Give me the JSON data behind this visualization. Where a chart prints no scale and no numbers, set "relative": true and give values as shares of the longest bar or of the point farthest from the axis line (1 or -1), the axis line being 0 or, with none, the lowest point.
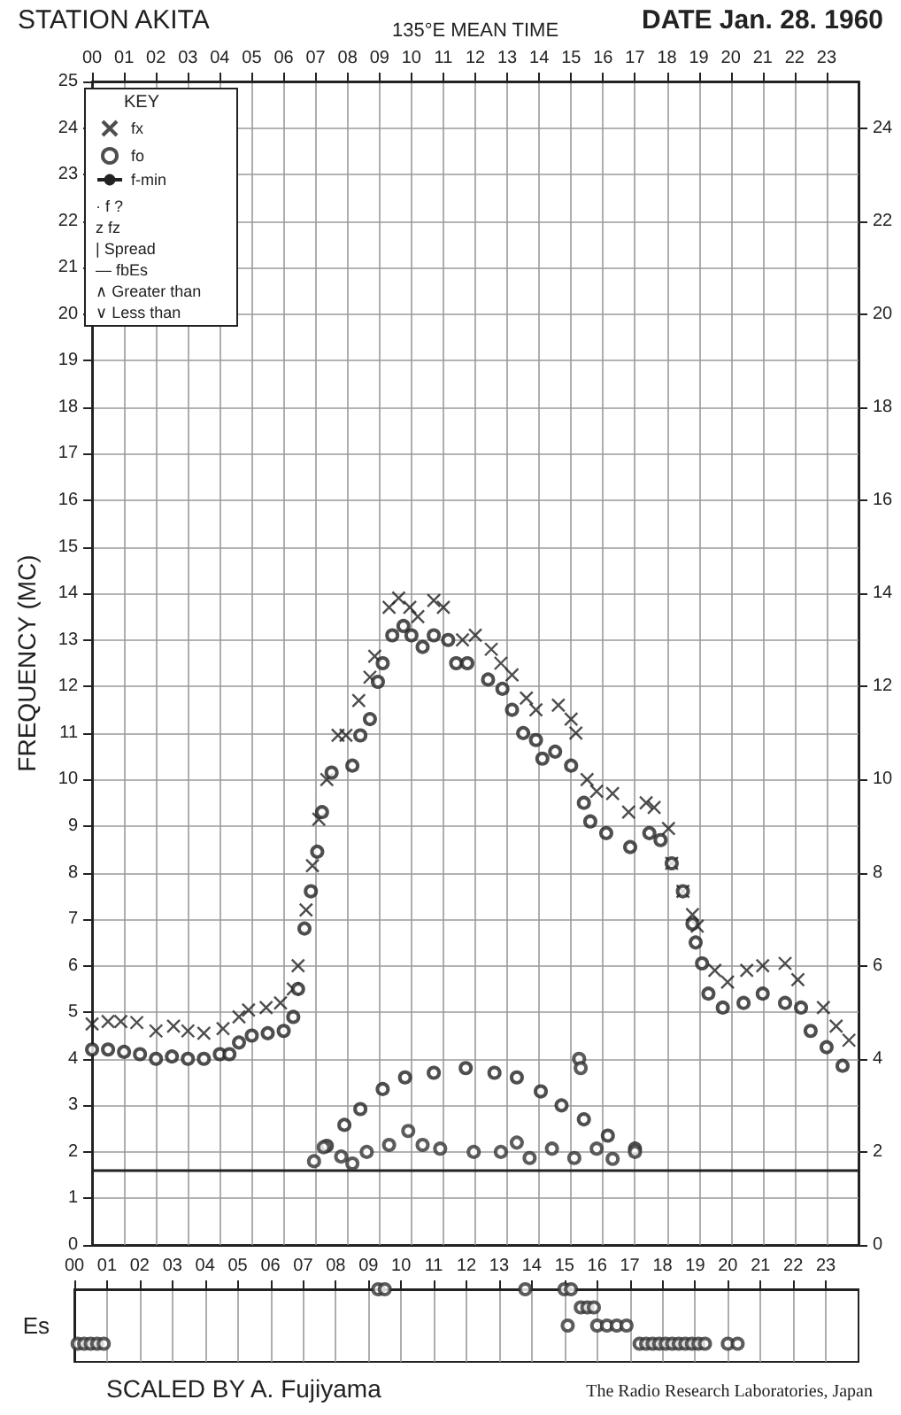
{
  "chart_data": [
    {
      "type": "scatter",
      "title": "STATION AKITA",
      "x2label": "135°E MEAN TIME",
      "ylabel": "FREQUENCY (MC)",
      "legend_title": "KEY",
      "annotations": [
        "DATE Jan. 28. 1960",
        "· f ?",
        "z fz",
        "| Spread",
        "— fbEs",
        "∧ Greater than",
        "∨ Less than"
      ],
      "xlim": [
        0,
        24
      ],
      "x2lim": [
        0,
        24
      ],
      "x2ticks": [
        {
          "value": 0,
          "label": "00"
        },
        {
          "value": 1,
          "label": "01"
        },
        {
          "value": 2,
          "label": "02"
        },
        {
          "value": 3,
          "label": "03"
        },
        {
          "value": 4,
          "label": "04"
        },
        {
          "value": 5,
          "label": "05"
        },
        {
          "value": 6,
          "label": "06"
        },
        {
          "value": 7,
          "label": "07"
        },
        {
          "value": 8,
          "label": "08"
        },
        {
          "value": 9,
          "label": "09"
        },
        {
          "value": 10,
          "label": "10"
        },
        {
          "value": 11,
          "label": "11"
        },
        {
          "value": 12,
          "label": "12"
        },
        {
          "value": 13,
          "label": "13"
        },
        {
          "value": 14,
          "label": "14"
        },
        {
          "value": 15,
          "label": "15"
        },
        {
          "value": 16,
          "label": "16"
        },
        {
          "value": 17,
          "label": "17"
        },
        {
          "value": 18,
          "label": "18"
        },
        {
          "value": 19,
          "label": "19"
        },
        {
          "value": 20,
          "label": "20"
        },
        {
          "value": 21,
          "label": "21"
        },
        {
          "value": 22,
          "label": "22"
        },
        {
          "value": 23,
          "label": "23"
        }
      ],
      "ylim": [
        0,
        25
      ],
      "yticks": [
        0,
        1,
        2,
        3,
        4,
        5,
        6,
        7,
        8,
        9,
        10,
        11,
        12,
        13,
        14,
        15,
        16,
        17,
        18,
        19,
        20,
        21,
        22,
        23,
        24,
        25
      ],
      "y2lim": [
        0,
        25
      ],
      "y2ticks": [
        0,
        2,
        4,
        6,
        8,
        10,
        12,
        14,
        16,
        18,
        20,
        22,
        24
      ],
      "grid": true,
      "legend": "top left",
      "tick_labels": "y",
      "series": [
        {
          "name": "fx",
          "color": "#222222",
          "marker": "cross",
          "x": [
            0,
            0.5,
            0.9,
            1.4,
            2.0,
            2.55,
            3.0,
            3.5,
            4.1,
            4.6,
            4.9,
            5.45,
            5.9,
            6.3,
            6.45,
            6.7,
            6.9,
            7.1,
            7.35,
            7.7,
            7.95,
            8.35,
            8.7,
            8.85,
            9.3,
            9.6,
            9.95,
            10.2,
            10.7,
            11.0,
            11.6,
            12.0,
            12.5,
            12.8,
            13.15,
            13.6,
            13.9,
            14.6,
            15.0,
            15.15,
            15.5,
            15.8,
            16.3,
            16.8,
            17.35,
            17.6,
            18.05,
            18.15,
            18.5,
            18.8,
            18.95,
            19.5,
            19.9,
            20.5,
            21.0,
            21.7,
            22.1,
            22.9,
            23.3,
            23.7
          ],
          "values": [
            4.75,
            4.8,
            4.8,
            4.78,
            4.6,
            4.7,
            4.6,
            4.55,
            4.65,
            4.9,
            5.05,
            5.1,
            5.2,
            5.5,
            6.0,
            7.2,
            8.15,
            9.15,
            10.0,
            10.95,
            10.95,
            11.7,
            12.2,
            12.65,
            13.7,
            13.9,
            13.7,
            13.5,
            13.85,
            13.7,
            13.0,
            13.1,
            12.8,
            12.5,
            12.25,
            11.75,
            11.5,
            11.6,
            11.3,
            11.0,
            10.0,
            9.75,
            9.7,
            9.3,
            9.5,
            9.4,
            8.95,
            8.2,
            7.6,
            7.1,
            6.85,
            5.9,
            5.65,
            5.9,
            6.0,
            6.05,
            5.7,
            5.1,
            4.7,
            4.4
          ]
        },
        {
          "name": "fo",
          "color": "#222222",
          "marker": "circle",
          "x": [
            0,
            0.5,
            1,
            1.5,
            2,
            2.5,
            3,
            3.5,
            4,
            4.3,
            4.6,
            5,
            5.5,
            6,
            6.3,
            6.45,
            6.65,
            6.85,
            7.05,
            7.2,
            7.5,
            8.15,
            8.4,
            8.7,
            8.95,
            9.1,
            9.4,
            9.75,
            10,
            10.35,
            10.7,
            11.15,
            11.4,
            11.75,
            12.4,
            12.85,
            13.15,
            13.5,
            13.9,
            14.1,
            14.5,
            15.0,
            15.4,
            15.6,
            16.1,
            16.85,
            17.45,
            17.8,
            18.15,
            18.5,
            18.8,
            18.9,
            19.1,
            19.3,
            19.75,
            20.4,
            21.0,
            21.7,
            22.2,
            22.5,
            23.0,
            23.5
          ],
          "values": [
            4.2,
            4.2,
            4.15,
            4.1,
            4.0,
            4.05,
            4.0,
            4.0,
            4.1,
            4.1,
            4.35,
            4.5,
            4.55,
            4.6,
            4.9,
            5.5,
            6.8,
            7.6,
            8.45,
            9.3,
            10.15,
            10.3,
            10.95,
            11.3,
            12.1,
            12.5,
            13.1,
            13.3,
            13.1,
            12.85,
            13.1,
            13.0,
            12.5,
            12.5,
            12.15,
            11.95,
            11.5,
            11.0,
            10.85,
            10.45,
            10.6,
            10.3,
            9.5,
            9.1,
            8.85,
            8.55,
            8.85,
            8.7,
            8.2,
            7.6,
            6.9,
            6.5,
            6.05,
            5.4,
            5.1,
            5.2,
            5.4,
            5.2,
            5.1,
            4.6,
            4.25,
            3.85
          ]
        },
        {
          "color": "#222222",
          "marker": "circle",
          "x": [
            7.35,
            7.9,
            8.4,
            9.1,
            9.8,
            10.7,
            11.7,
            12.6,
            13.3,
            14.05,
            14.7,
            15.4,
            16.15,
            17.0
          ],
          "values": [
            2.13,
            2.58,
            2.92,
            3.35,
            3.6,
            3.7,
            3.8,
            3.7,
            3.6,
            3.3,
            3.0,
            2.7,
            2.35,
            2.07
          ]
        },
        {
          "color": "#333333",
          "marker": "circle",
          "x": [
            6.95,
            7.25,
            7.8,
            8.15,
            8.6,
            9.3,
            9.9,
            10.35,
            10.9,
            11.95,
            12.8,
            13.3,
            13.7,
            14.4,
            15.1,
            15.25,
            15.3,
            15.8,
            16.3,
            17.0
          ],
          "values": [
            1.8,
            2.1,
            1.9,
            1.75,
            2.0,
            2.15,
            2.45,
            2.15,
            2.07,
            2.0,
            2.0,
            2.2,
            1.87,
            2.07,
            1.87,
            4.0,
            3.8,
            2.07,
            1.85,
            2.0
          ]
        },
        {
          "name": "f-min",
          "type": "line",
          "color": "#222222",
          "marker": "none",
          "line_style": "solid",
          "x": [
            0,
            24
          ],
          "values": [
            1.6,
            1.6
          ]
        }
      ]
    },
    {
      "type": "scatter",
      "ylabel": "Es",
      "annotations": [
        "SCALED BY A. Fujiyama",
        "The Radio Research Laboratories, Japan"
      ],
      "xlim": [
        0,
        24
      ],
      "xticks": [
        {
          "value": 0,
          "label": "00"
        },
        {
          "value": 1,
          "label": "01"
        },
        {
          "value": 2,
          "label": "02"
        },
        {
          "value": 3,
          "label": "03"
        },
        {
          "value": 4,
          "label": "04"
        },
        {
          "value": 5,
          "label": "05"
        },
        {
          "value": 6,
          "label": "06"
        },
        {
          "value": 7,
          "label": "07"
        },
        {
          "value": 8,
          "label": "08"
        },
        {
          "value": 9,
          "label": "09"
        },
        {
          "value": 10,
          "label": "10"
        },
        {
          "value": 11,
          "label": "11"
        },
        {
          "value": 12,
          "label": "12"
        },
        {
          "value": 13,
          "label": "13"
        },
        {
          "value": 14,
          "label": "14"
        },
        {
          "value": 15,
          "label": "15"
        },
        {
          "value": 16,
          "label": "16"
        },
        {
          "value": 17,
          "label": "17"
        },
        {
          "value": 18,
          "label": "18"
        },
        {
          "value": 19,
          "label": "19"
        },
        {
          "value": 20,
          "label": "20"
        },
        {
          "value": 21,
          "label": "21"
        },
        {
          "value": 22,
          "label": "22"
        },
        {
          "value": 23,
          "label": "23"
        }
      ],
      "relative": true,
      "tick_labels": "x",
      "grid": "x",
      "series": [
        {
          "color": "#333333",
          "marker": "circle",
          "x": [
            0.1,
            0.3,
            0.5,
            0.7,
            0.9,
            17.3,
            17.5,
            17.7,
            17.9,
            18.1,
            18.3,
            18.5,
            18.7,
            18.9,
            19.1,
            19.3,
            20.0,
            20.3,
            15.1,
            16.0,
            16.3,
            16.6,
            16.9,
            15.5,
            15.7,
            15.9,
            9.3,
            9.5,
            13.8,
            15.0,
            15.2
          ],
          "values": [
            0.25,
            0.25,
            0.25,
            0.25,
            0.25,
            0.25,
            0.25,
            0.25,
            0.25,
            0.25,
            0.25,
            0.25,
            0.25,
            0.25,
            0.25,
            0.25,
            0.25,
            0.25,
            0.5,
            0.5,
            0.5,
            0.5,
            0.5,
            0.75,
            0.75,
            0.75,
            1,
            1,
            1,
            1,
            1
          ]
        }
      ]
    }
  ]
}
